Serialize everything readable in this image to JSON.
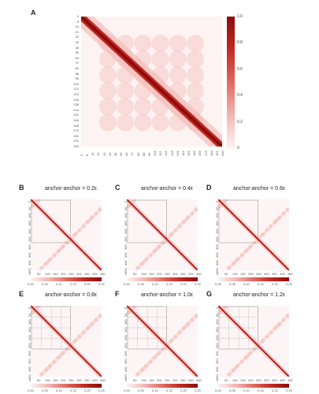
{
  "panels": {
    "A": {
      "letter": "A"
    },
    "B": {
      "letter": "B",
      "title": "anchor-anchor = 0.2ε"
    },
    "C": {
      "letter": "C",
      "title": "anchor-anchor = 0.4ε"
    },
    "D": {
      "letter": "D",
      "title": "anchor-anchor = 0.6ε"
    },
    "E": {
      "letter": "E",
      "title": "anchor-anchor = 0.8ε"
    },
    "F": {
      "letter": "F",
      "title": "anchor-anchor = 1.0ε"
    },
    "G": {
      "letter": "G",
      "title": "anchor-anchor = 1.2ε"
    }
  },
  "panel_a": {
    "row_ticks": [
      "0",
      "8",
      "16",
      "24",
      "32",
      "40",
      "48",
      "56",
      "64",
      "72",
      "80",
      "88",
      "96",
      "104",
      "112",
      "120",
      "128",
      "136",
      "144",
      "152",
      "160",
      "168",
      "176",
      "184",
      "192",
      "200"
    ],
    "col_ticks": [
      "0",
      "8",
      "16",
      "24",
      "32",
      "40",
      "48",
      "56",
      "64",
      "72",
      "80",
      "88",
      "96",
      "104",
      "112",
      "120",
      "128",
      "136",
      "144",
      "152",
      "160",
      "168",
      "176",
      "184",
      "192",
      "200"
    ],
    "colorbar_ticks": [
      "1.0",
      "0.8",
      "0.6",
      "0.4",
      "0.2",
      "0"
    ]
  },
  "small_panels": {
    "axis_ticks": [
      "0",
      "50",
      "100",
      "150",
      "200",
      "250",
      "300",
      "350",
      "400",
      "450"
    ],
    "colorbar_ticks": [
      "0.00",
      "0.05",
      "0.10",
      "0.15",
      "0.20",
      "0.25"
    ]
  },
  "colors": {
    "dark": "#8e0b0b",
    "mid": "#c02a22",
    "light": "#f3b6b3",
    "bg": "#fdf3f3"
  }
}
